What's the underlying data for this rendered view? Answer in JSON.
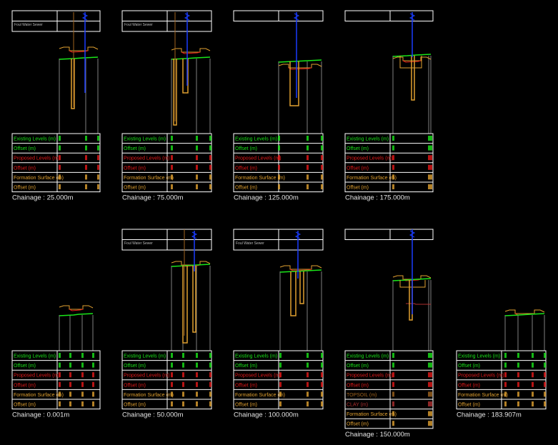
{
  "colors": {
    "background": "#000000",
    "existing": "#19e619",
    "proposed": "#e61919",
    "formation": "#e0a030",
    "topsoil": "#a0641e",
    "clay": "#b03030",
    "sewer": "#1a3cff",
    "grid": "#ffffff",
    "guide": "#808080"
  },
  "row_labels": {
    "existing_levels": "Existing Levels (m)",
    "offset": "Offset (m)",
    "proposed_levels": "Proposed Levels (m)",
    "formation_surface": "Formation Surface (m)",
    "topsoil": "TOPSOIL (m)",
    "clay": "CLAY (m)"
  },
  "header_label": "Foul Water Sewer",
  "sections": [
    {
      "chainage": "Chainage : 25.000m",
      "header_rows": 2,
      "extra_strata": false
    },
    {
      "chainage": "Chainage : 75.000m",
      "header_rows": 2,
      "extra_strata": false
    },
    {
      "chainage": "Chainage : 125.000m",
      "header_rows": 1,
      "extra_strata": false
    },
    {
      "chainage": "Chainage : 175.000m",
      "header_rows": 1,
      "extra_strata": false
    },
    {
      "chainage": "Chainage : 0.001m",
      "header_rows": 0,
      "extra_strata": false
    },
    {
      "chainage": "Chainage : 50.000m",
      "header_rows": 2,
      "extra_strata": false
    },
    {
      "chainage": "Chainage : 100.000m",
      "header_rows": 2,
      "extra_strata": false
    },
    {
      "chainage": "Chainage : 150.000m",
      "header_rows": 1,
      "extra_strata": true
    },
    {
      "chainage": "Chainage : 183.907m",
      "header_rows": 0,
      "extra_strata": false
    }
  ]
}
